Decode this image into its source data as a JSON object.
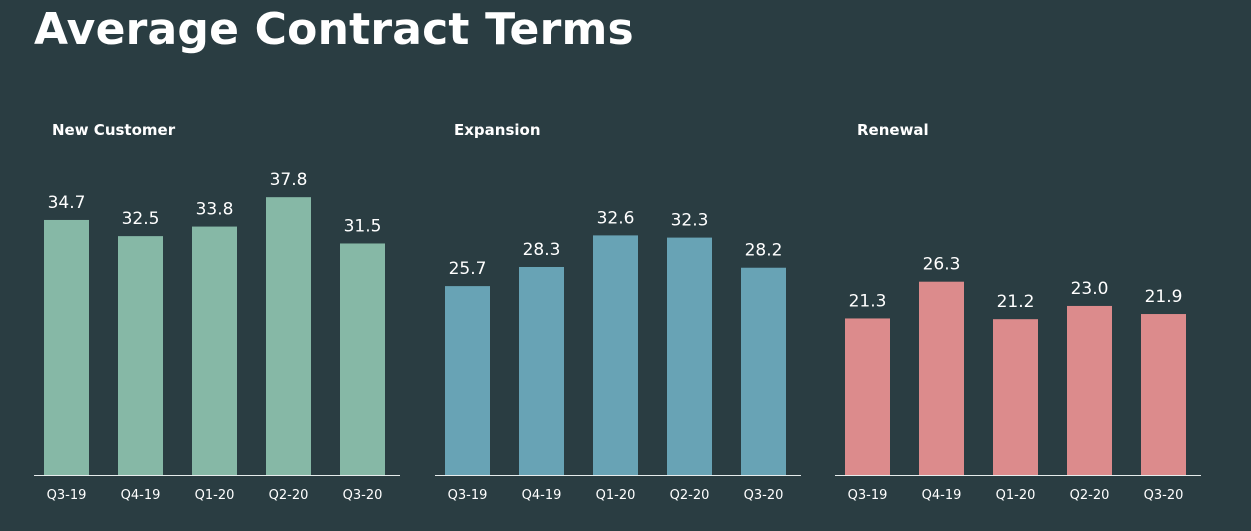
{
  "page": {
    "title": "Average Contract Terms"
  },
  "chart_data": [
    {
      "type": "bar",
      "title": "New Customer",
      "categories": [
        "Q3-19",
        "Q4-19",
        "Q1-20",
        "Q2-20",
        "Q3-20"
      ],
      "values": [
        34.7,
        32.5,
        33.8,
        37.8,
        31.5
      ],
      "value_labels": [
        "34.7",
        "32.5",
        "33.8",
        "37.8",
        "31.5"
      ],
      "color": "#86b8a6",
      "ylim": [
        0,
        40
      ],
      "grid": false,
      "xlabel": "",
      "ylabel": ""
    },
    {
      "type": "bar",
      "title": "Expansion",
      "categories": [
        "Q3-19",
        "Q4-19",
        "Q1-20",
        "Q2-20",
        "Q3-20"
      ],
      "values": [
        25.7,
        28.3,
        32.6,
        32.3,
        28.2
      ],
      "value_labels": [
        "25.7",
        "28.3",
        "32.6",
        "32.3",
        "28.2"
      ],
      "color": "#68a3b5",
      "ylim": [
        0,
        40
      ],
      "grid": false,
      "xlabel": "",
      "ylabel": ""
    },
    {
      "type": "bar",
      "title": "Renewal",
      "categories": [
        "Q3-19",
        "Q4-19",
        "Q1-20",
        "Q2-20",
        "Q3-20"
      ],
      "values": [
        21.3,
        26.3,
        21.2,
        23.0,
        21.9
      ],
      "value_labels": [
        "21.3",
        "26.3",
        "21.2",
        "23.0",
        "21.9"
      ],
      "color": "#dc8b8c",
      "ylim": [
        0,
        40
      ],
      "grid": false,
      "xlabel": "",
      "ylabel": ""
    }
  ]
}
